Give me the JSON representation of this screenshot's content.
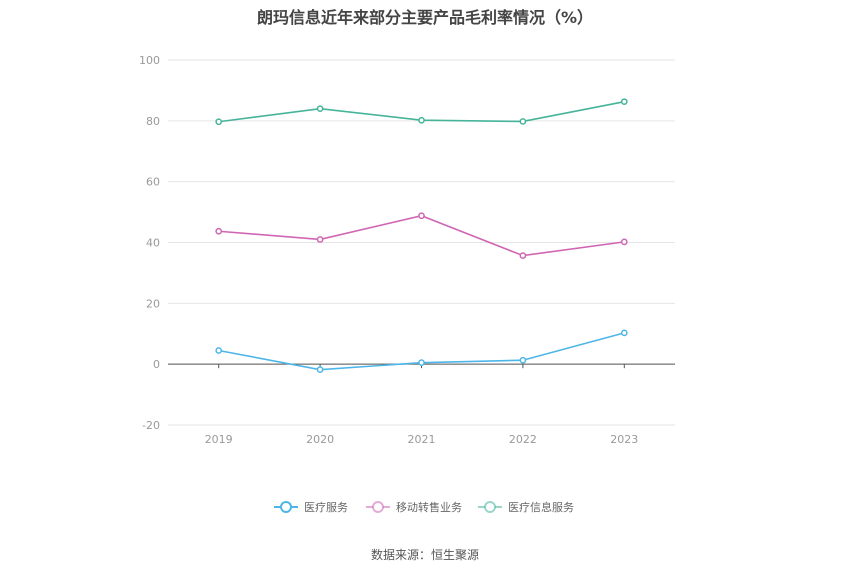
{
  "chart_data": {
    "type": "line",
    "title": "朗玛信息近年来部分主要产品毛利率情况（%）",
    "categories": [
      "2019",
      "2020",
      "2021",
      "2022",
      "2023"
    ],
    "ylim": [
      -20,
      100
    ],
    "yticks": [
      -20,
      0,
      20,
      40,
      60,
      80,
      100
    ],
    "grid": true,
    "legend_position": "bottom",
    "series": [
      {
        "name": "医疗服务",
        "color": "#4db6e8",
        "values": [
          4.5,
          -1.8,
          0.5,
          1.3,
          10.3
        ]
      },
      {
        "name": "移动转售业务",
        "color": "#d066b3",
        "values": [
          43.7,
          41.0,
          48.8,
          35.7,
          40.2
        ]
      },
      {
        "name": "医疗信息服务",
        "color": "#46b49a",
        "values": [
          79.7,
          84.0,
          80.2,
          79.8,
          86.3
        ]
      }
    ]
  },
  "source": "数据来源：恒生聚源"
}
